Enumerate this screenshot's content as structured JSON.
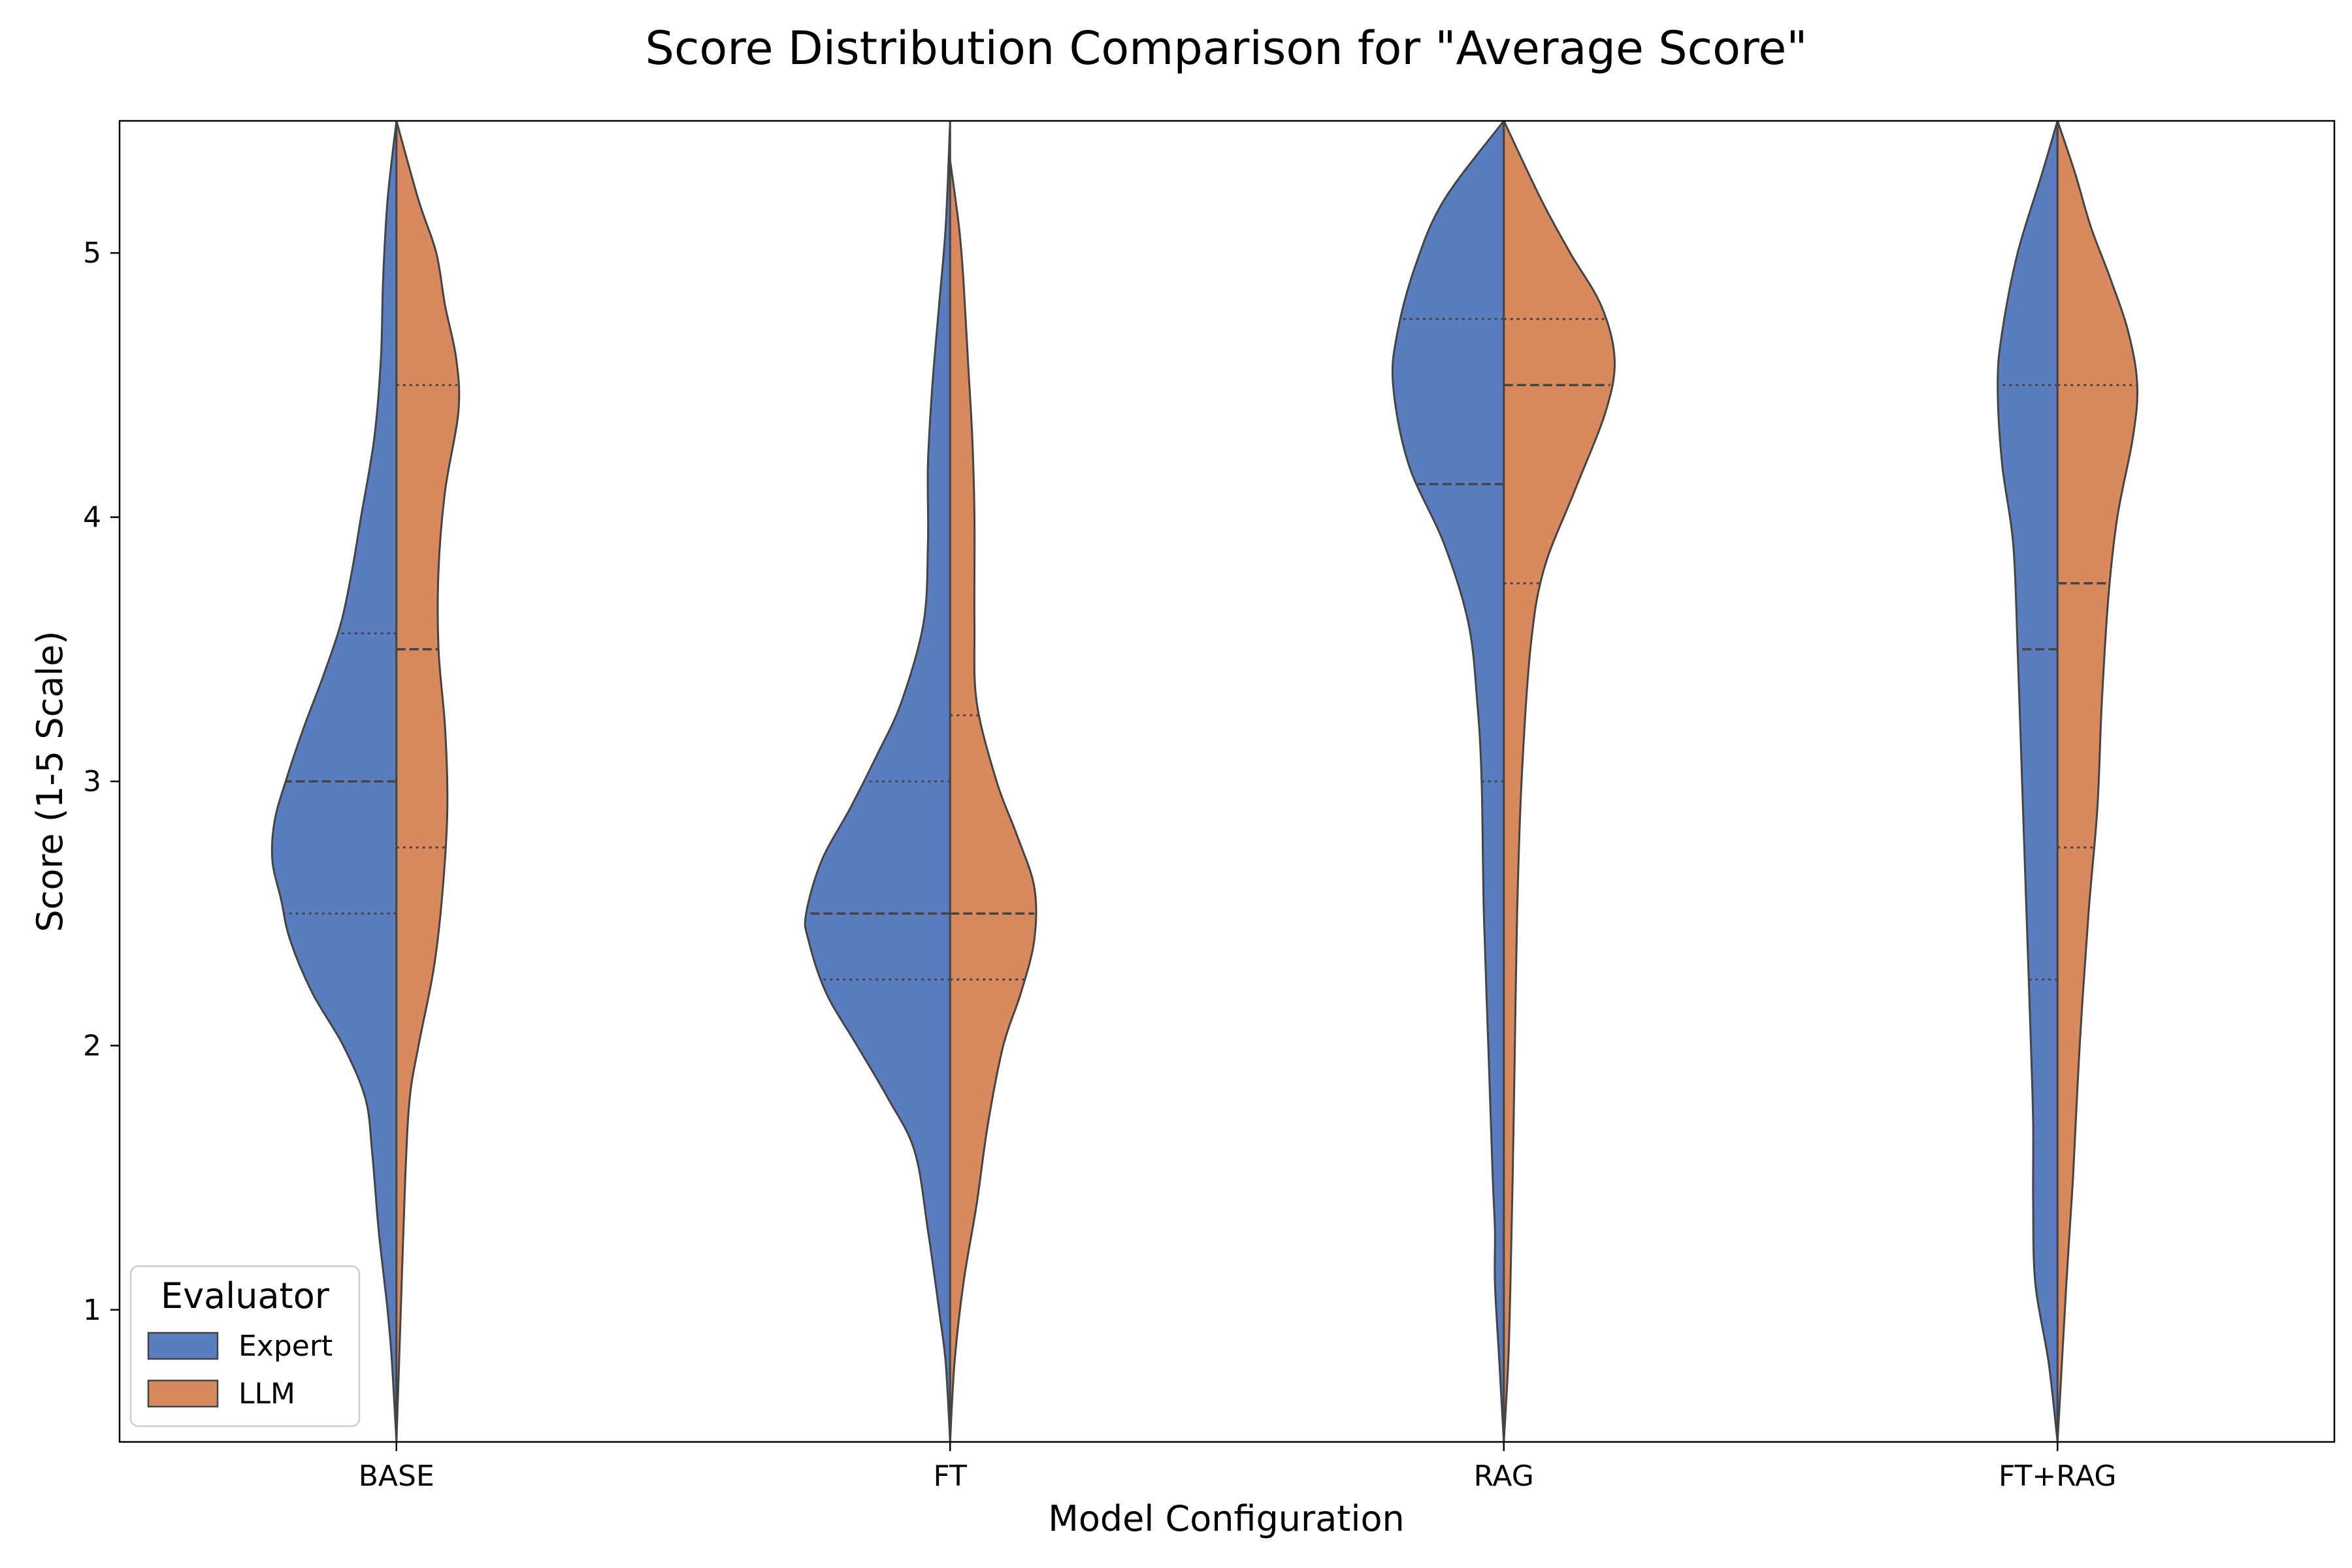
{
  "chart_data": {
    "type": "violin",
    "title": "Score Distribution Comparison for \"Average Score\"",
    "xlabel": "Model Configuration",
    "ylabel": "Score (1-5 Scale)",
    "ylim": [
      0.5,
      5.5
    ],
    "yticks": [
      1,
      2,
      3,
      4,
      5
    ],
    "categories": [
      "BASE",
      "FT",
      "RAG",
      "FT+RAG"
    ],
    "split": true,
    "inner": "quartile",
    "legend": {
      "title": "Evaluator",
      "placement": "lower-left",
      "entries": [
        {
          "label": "Expert",
          "color": "#5a7dc0"
        },
        {
          "label": "LLM",
          "color": "#d9895e"
        }
      ]
    },
    "series": [
      {
        "name": "Expert",
        "color": "#5a7dc0",
        "violins": [
          {
            "category": "BASE",
            "quartiles": [
              2.5,
              3.0,
              3.56
            ],
            "range": [
              0.5,
              5.5
            ],
            "profile": [
              [
                0.5,
                0.0
              ],
              [
                0.8,
                0.02
              ],
              [
                1.0,
                0.04
              ],
              [
                1.3,
                0.08
              ],
              [
                1.6,
                0.11
              ],
              [
                1.8,
                0.14
              ],
              [
                2.0,
                0.24
              ],
              [
                2.2,
                0.38
              ],
              [
                2.4,
                0.48
              ],
              [
                2.55,
                0.52
              ],
              [
                2.7,
                0.56
              ],
              [
                2.85,
                0.55
              ],
              [
                3.0,
                0.5
              ],
              [
                3.2,
                0.42
              ],
              [
                3.4,
                0.33
              ],
              [
                3.6,
                0.25
              ],
              [
                3.8,
                0.2
              ],
              [
                4.0,
                0.16
              ],
              [
                4.3,
                0.1
              ],
              [
                4.6,
                0.07
              ],
              [
                4.9,
                0.06
              ],
              [
                5.2,
                0.04
              ],
              [
                5.5,
                0.0
              ]
            ]
          },
          {
            "category": "FT",
            "quartiles": [
              2.25,
              2.5,
              3.0
            ],
            "range": [
              0.5,
              5.5
            ],
            "profile": [
              [
                0.5,
                0.0
              ],
              [
                0.8,
                0.02
              ],
              [
                1.0,
                0.05
              ],
              [
                1.3,
                0.1
              ],
              [
                1.6,
                0.16
              ],
              [
                1.8,
                0.28
              ],
              [
                2.0,
                0.42
              ],
              [
                2.2,
                0.56
              ],
              [
                2.4,
                0.64
              ],
              [
                2.5,
                0.65
              ],
              [
                2.7,
                0.58
              ],
              [
                2.9,
                0.45
              ],
              [
                3.1,
                0.33
              ],
              [
                3.3,
                0.22
              ],
              [
                3.6,
                0.12
              ],
              [
                3.9,
                0.1
              ],
              [
                4.2,
                0.1
              ],
              [
                4.5,
                0.08
              ],
              [
                4.8,
                0.05
              ],
              [
                5.1,
                0.02
              ],
              [
                5.5,
                0.0
              ]
            ]
          },
          {
            "category": "RAG",
            "quartiles": [
              3.0,
              4.125,
              4.75
            ],
            "range": [
              0.5,
              5.5
            ],
            "profile": [
              [
                0.5,
                0.0
              ],
              [
                0.8,
                0.02
              ],
              [
                1.1,
                0.04
              ],
              [
                1.3,
                0.04
              ],
              [
                1.5,
                0.05
              ],
              [
                2.0,
                0.07
              ],
              [
                2.5,
                0.09
              ],
              [
                3.0,
                0.1
              ],
              [
                3.3,
                0.12
              ],
              [
                3.6,
                0.16
              ],
              [
                3.9,
                0.27
              ],
              [
                4.2,
                0.43
              ],
              [
                4.5,
                0.5
              ],
              [
                4.7,
                0.48
              ],
              [
                4.95,
                0.4
              ],
              [
                5.2,
                0.27
              ],
              [
                5.5,
                0.0
              ]
            ]
          },
          {
            "category": "FT+RAG",
            "quartiles": [
              2.25,
              3.5,
              4.5
            ],
            "range": [
              0.5,
              5.5
            ],
            "profile": [
              [
                0.5,
                0.0
              ],
              [
                0.8,
                0.04
              ],
              [
                1.1,
                0.1
              ],
              [
                1.4,
                0.11
              ],
              [
                1.7,
                0.11
              ],
              [
                2.0,
                0.12
              ],
              [
                2.5,
                0.14
              ],
              [
                3.0,
                0.16
              ],
              [
                3.5,
                0.18
              ],
              [
                3.9,
                0.2
              ],
              [
                4.2,
                0.25
              ],
              [
                4.5,
                0.27
              ],
              [
                4.7,
                0.25
              ],
              [
                5.0,
                0.18
              ],
              [
                5.3,
                0.07
              ],
              [
                5.5,
                0.0
              ]
            ]
          }
        ]
      },
      {
        "name": "LLM",
        "color": "#d9895e",
        "violins": [
          {
            "category": "BASE",
            "quartiles": [
              2.75,
              3.5,
              4.5
            ],
            "range": [
              0.5,
              5.5
            ],
            "profile": [
              [
                0.5,
                0.0
              ],
              [
                1.0,
                0.02
              ],
              [
                1.5,
                0.04
              ],
              [
                1.8,
                0.06
              ],
              [
                2.0,
                0.1
              ],
              [
                2.3,
                0.17
              ],
              [
                2.6,
                0.21
              ],
              [
                2.9,
                0.23
              ],
              [
                3.2,
                0.22
              ],
              [
                3.5,
                0.19
              ],
              [
                3.8,
                0.19
              ],
              [
                4.1,
                0.22
              ],
              [
                4.4,
                0.28
              ],
              [
                4.6,
                0.27
              ],
              [
                4.8,
                0.22
              ],
              [
                5.0,
                0.18
              ],
              [
                5.2,
                0.1
              ],
              [
                5.5,
                0.0
              ]
            ]
          },
          {
            "category": "FT",
            "quartiles": [
              2.25,
              2.5,
              3.25
            ],
            "range": [
              0.5,
              5.5
            ],
            "profile": [
              [
                0.5,
                0.0
              ],
              [
                0.8,
                0.02
              ],
              [
                1.1,
                0.06
              ],
              [
                1.4,
                0.12
              ],
              [
                1.7,
                0.17
              ],
              [
                2.0,
                0.24
              ],
              [
                2.2,
                0.32
              ],
              [
                2.4,
                0.38
              ],
              [
                2.6,
                0.38
              ],
              [
                2.8,
                0.3
              ],
              [
                3.0,
                0.21
              ],
              [
                3.3,
                0.12
              ],
              [
                3.6,
                0.11
              ],
              [
                4.0,
                0.11
              ],
              [
                4.3,
                0.1
              ],
              [
                4.6,
                0.08
              ],
              [
                4.9,
                0.06
              ],
              [
                5.1,
                0.04
              ],
              [
                5.35,
                0.0
              ]
            ]
          },
          {
            "category": "RAG",
            "quartiles": [
              3.75,
              4.5,
              4.75
            ],
            "range": [
              0.5,
              5.5
            ],
            "profile": [
              [
                0.5,
                0.0
              ],
              [
                0.8,
                0.02
              ],
              [
                1.1,
                0.03
              ],
              [
                1.5,
                0.04
              ],
              [
                2.0,
                0.05
              ],
              [
                2.5,
                0.06
              ],
              [
                3.0,
                0.08
              ],
              [
                3.5,
                0.12
              ],
              [
                3.8,
                0.18
              ],
              [
                4.1,
                0.32
              ],
              [
                4.4,
                0.46
              ],
              [
                4.6,
                0.5
              ],
              [
                4.8,
                0.44
              ],
              [
                5.0,
                0.3
              ],
              [
                5.2,
                0.17
              ],
              [
                5.5,
                0.0
              ]
            ]
          },
          {
            "category": "FT+RAG",
            "quartiles": [
              2.75,
              3.75,
              4.5
            ],
            "range": [
              0.5,
              5.5
            ],
            "profile": [
              [
                0.5,
                0.0
              ],
              [
                0.8,
                0.02
              ],
              [
                1.1,
                0.04
              ],
              [
                1.5,
                0.07
              ],
              [
                2.0,
                0.1
              ],
              [
                2.5,
                0.14
              ],
              [
                2.9,
                0.18
              ],
              [
                3.3,
                0.2
              ],
              [
                3.7,
                0.23
              ],
              [
                4.0,
                0.27
              ],
              [
                4.3,
                0.34
              ],
              [
                4.5,
                0.36
              ],
              [
                4.7,
                0.32
              ],
              [
                4.9,
                0.24
              ],
              [
                5.1,
                0.15
              ],
              [
                5.3,
                0.08
              ],
              [
                5.5,
                0.0
              ]
            ]
          }
        ]
      }
    ]
  }
}
